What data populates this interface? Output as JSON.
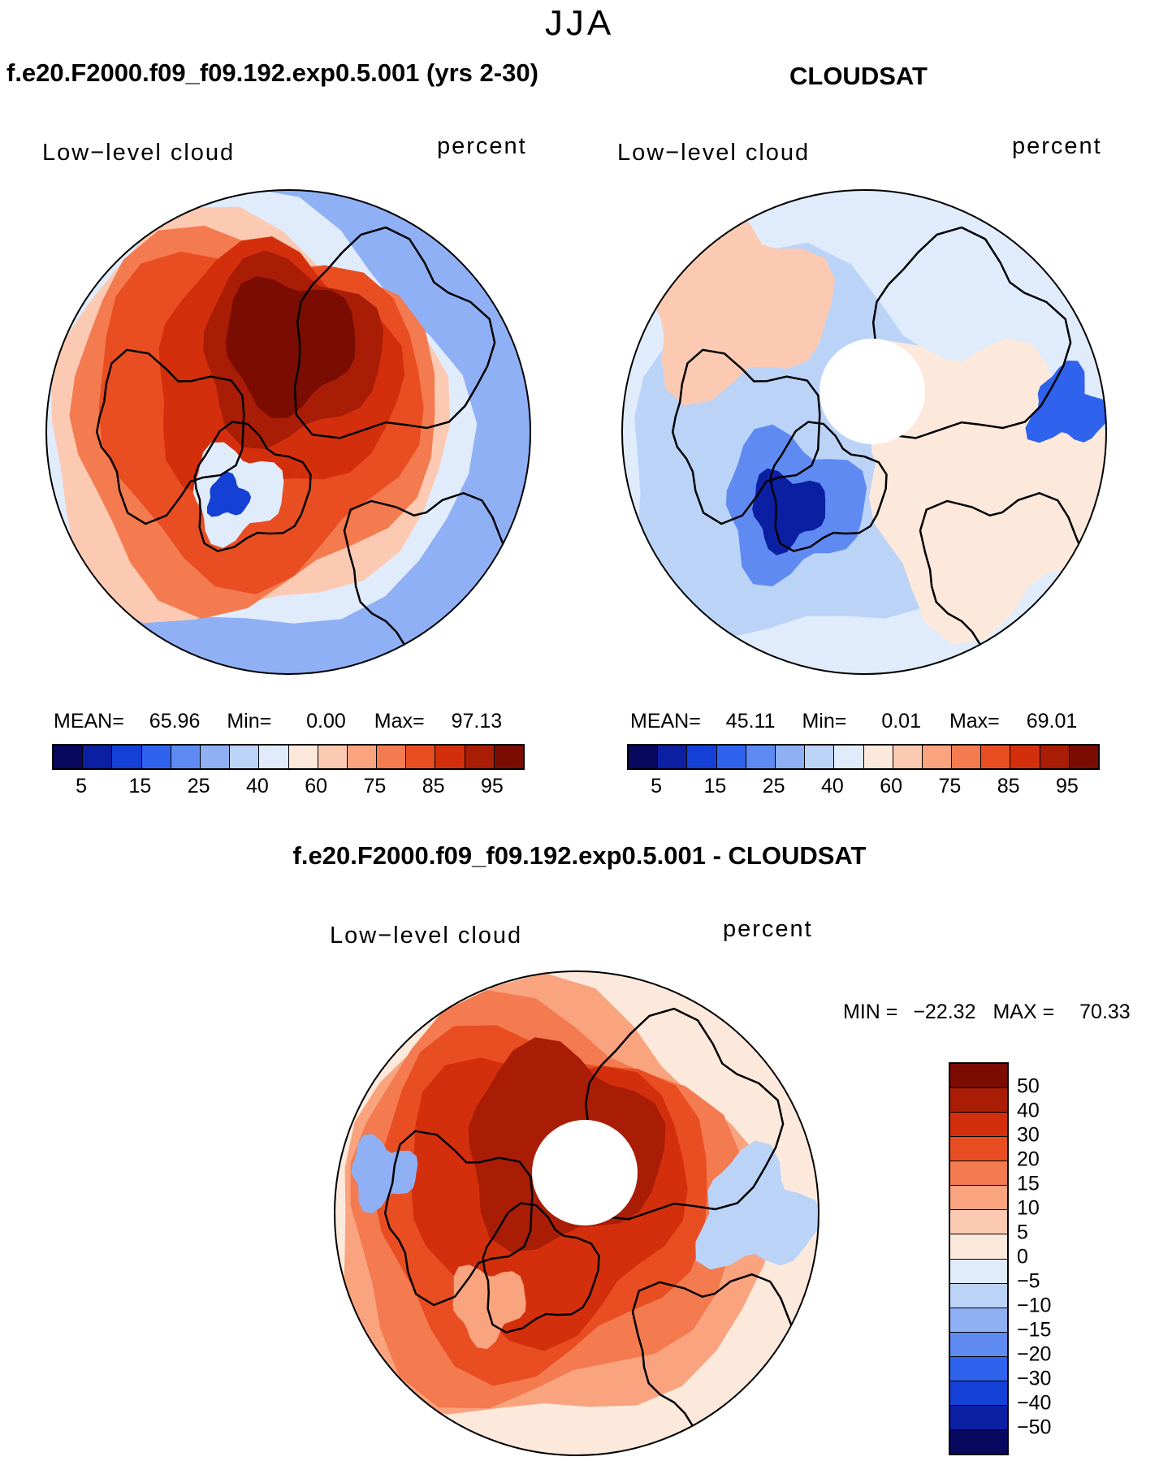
{
  "season": "JJA",
  "panels": [
    {
      "title": "f.e20.F2000.f09_f09.192.exp0.5.001 (yrs 2-30)",
      "label_left": "Low−level cloud",
      "label_right": "percent",
      "stats": {
        "mean_label": "MEAN=",
        "mean": "65.96",
        "min_label": "Min=",
        "min": "0.00",
        "max_label": "Max=",
        "max": "97.13"
      },
      "colorbar_ticks": [
        "5",
        "15",
        "25",
        "40",
        "60",
        "75",
        "85",
        "95"
      ],
      "has_polar_hole": false
    },
    {
      "title": "CLOUDSAT",
      "label_left": "Low−level cloud",
      "label_right": "percent",
      "stats": {
        "mean_label": "MEAN=",
        "mean": "45.11",
        "min_label": "Min=",
        "min": "0.01",
        "max_label": "Max=",
        "max": "69.01"
      },
      "colorbar_ticks": [
        "5",
        "15",
        "25",
        "40",
        "60",
        "75",
        "85",
        "95"
      ],
      "has_polar_hole": true
    }
  ],
  "diff_panel": {
    "title": "f.e20.F2000.f09_f09.192.exp0.5.001 - CLOUDSAT",
    "label_left": "Low−level cloud",
    "label_right": "percent",
    "stats": {
      "min_label": "MIN =",
      "min": "−22.32",
      "max_label": "MAX =",
      "max": "70.33"
    },
    "colorbar_ticks": [
      "50",
      "40",
      "30",
      "20",
      "15",
      "10",
      "5",
      "0",
      "−5",
      "−10",
      "−15",
      "−20",
      "−30",
      "−40",
      "−50"
    ]
  },
  "colors": {
    "palette": [
      "#08085e",
      "#0b1fa3",
      "#1440d6",
      "#2f63ee",
      "#5e8af2",
      "#8fb0f5",
      "#bcd3f8",
      "#e0ecfb",
      "#fde9dc",
      "#fccab2",
      "#f9a37f",
      "#f47a4f",
      "#e94e22",
      "#d42f0d",
      "#a91d07",
      "#7a0c02"
    ],
    "coast": "#000000"
  }
}
